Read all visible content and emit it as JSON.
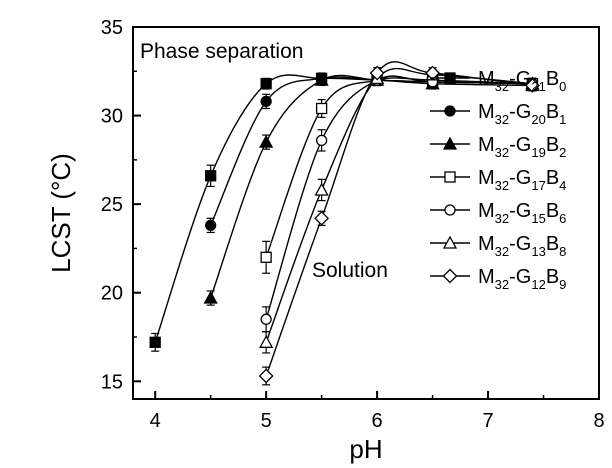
{
  "chart_data": {
    "type": "line",
    "xlabel": "pH",
    "ylabel": "LCST (°C)",
    "xlim": [
      3.8,
      8
    ],
    "ylim": [
      14,
      35
    ],
    "xticks": [
      "4",
      "5",
      "6",
      "7",
      "8"
    ],
    "yticks": [
      "15",
      "20",
      "25",
      "30",
      "35"
    ],
    "annotations": [
      "Phase separation",
      "Solution"
    ],
    "legend_position": "right",
    "grid": false,
    "series": [
      {
        "name": "M32-G21B0",
        "marker": "square-filled",
        "x": [
          4.0,
          4.5,
          5.0,
          5.5,
          6.0,
          6.5,
          7.4
        ],
        "y": [
          17.2,
          26.6,
          31.8,
          32.1,
          32.0,
          31.9,
          31.8
        ],
        "err": [
          0.5,
          0.6,
          0.3,
          0.3,
          0.3,
          0.3,
          0.3
        ]
      },
      {
        "name": "M32-G20B1",
        "marker": "circle-filled",
        "x": [
          4.5,
          5.0,
          5.5,
          6.0,
          6.5,
          7.4
        ],
        "y": [
          23.8,
          30.8,
          32.1,
          32.0,
          31.9,
          31.8
        ],
        "err": [
          0.4,
          0.4,
          0.3,
          0.3,
          0.3,
          0.3
        ]
      },
      {
        "name": "M32-G19B2",
        "marker": "triangle-filled",
        "x": [
          4.5,
          5.0,
          5.5,
          6.0,
          6.5,
          7.4
        ],
        "y": [
          19.7,
          28.5,
          32.0,
          32.0,
          31.8,
          31.7
        ],
        "err": [
          0.4,
          0.4,
          0.3,
          0.3,
          0.3,
          0.3
        ]
      },
      {
        "name": "M32-G17B4",
        "marker": "square-open",
        "x": [
          5.0,
          5.5,
          6.0,
          6.5,
          7.4
        ],
        "y": [
          22.0,
          30.4,
          32.0,
          32.0,
          31.8
        ],
        "err": [
          0.9,
          0.5,
          0.3,
          0.3,
          0.3
        ]
      },
      {
        "name": "M32-G15B6",
        "marker": "circle-open",
        "x": [
          5.0,
          5.5,
          6.0,
          6.5,
          7.4
        ],
        "y": [
          18.5,
          28.6,
          32.0,
          31.9,
          31.8
        ],
        "err": [
          0.7,
          0.6,
          0.3,
          0.3,
          0.3
        ]
      },
      {
        "name": "M32-G13B8",
        "marker": "triangle-open",
        "x": [
          5.0,
          5.5,
          6.0,
          6.5,
          7.4
        ],
        "y": [
          17.2,
          25.8,
          32.1,
          32.3,
          31.8
        ],
        "err": [
          0.6,
          0.6,
          0.3,
          0.3,
          0.3
        ]
      },
      {
        "name": "M32-G12B9",
        "marker": "diamond-open",
        "x": [
          5.0,
          5.5,
          6.0,
          6.5,
          7.4
        ],
        "y": [
          15.3,
          24.2,
          32.4,
          32.4,
          31.7
        ],
        "err": [
          0.5,
          0.4,
          0.3,
          0.3,
          0.3
        ]
      }
    ],
    "legend": [
      {
        "base": "M",
        "s1": "32",
        "mid": "-G",
        "s2": "21",
        "b": "B",
        "s3": "0"
      },
      {
        "base": "M",
        "s1": "32",
        "mid": "-G",
        "s2": "20",
        "b": "B",
        "s3": "1"
      },
      {
        "base": "M",
        "s1": "32",
        "mid": "-G",
        "s2": "19",
        "b": "B",
        "s3": "2"
      },
      {
        "base": "M",
        "s1": "32",
        "mid": "-G",
        "s2": "17",
        "b": "B",
        "s3": "4"
      },
      {
        "base": "M",
        "s1": "32",
        "mid": "-G",
        "s2": "15",
        "b": "B",
        "s3": "6"
      },
      {
        "base": "M",
        "s1": "32",
        "mid": "-G",
        "s2": "13",
        "b": "B",
        "s3": "8"
      },
      {
        "base": "M",
        "s1": "32",
        "mid": "-G",
        "s2": "12",
        "b": "B",
        "s3": "9"
      }
    ]
  }
}
